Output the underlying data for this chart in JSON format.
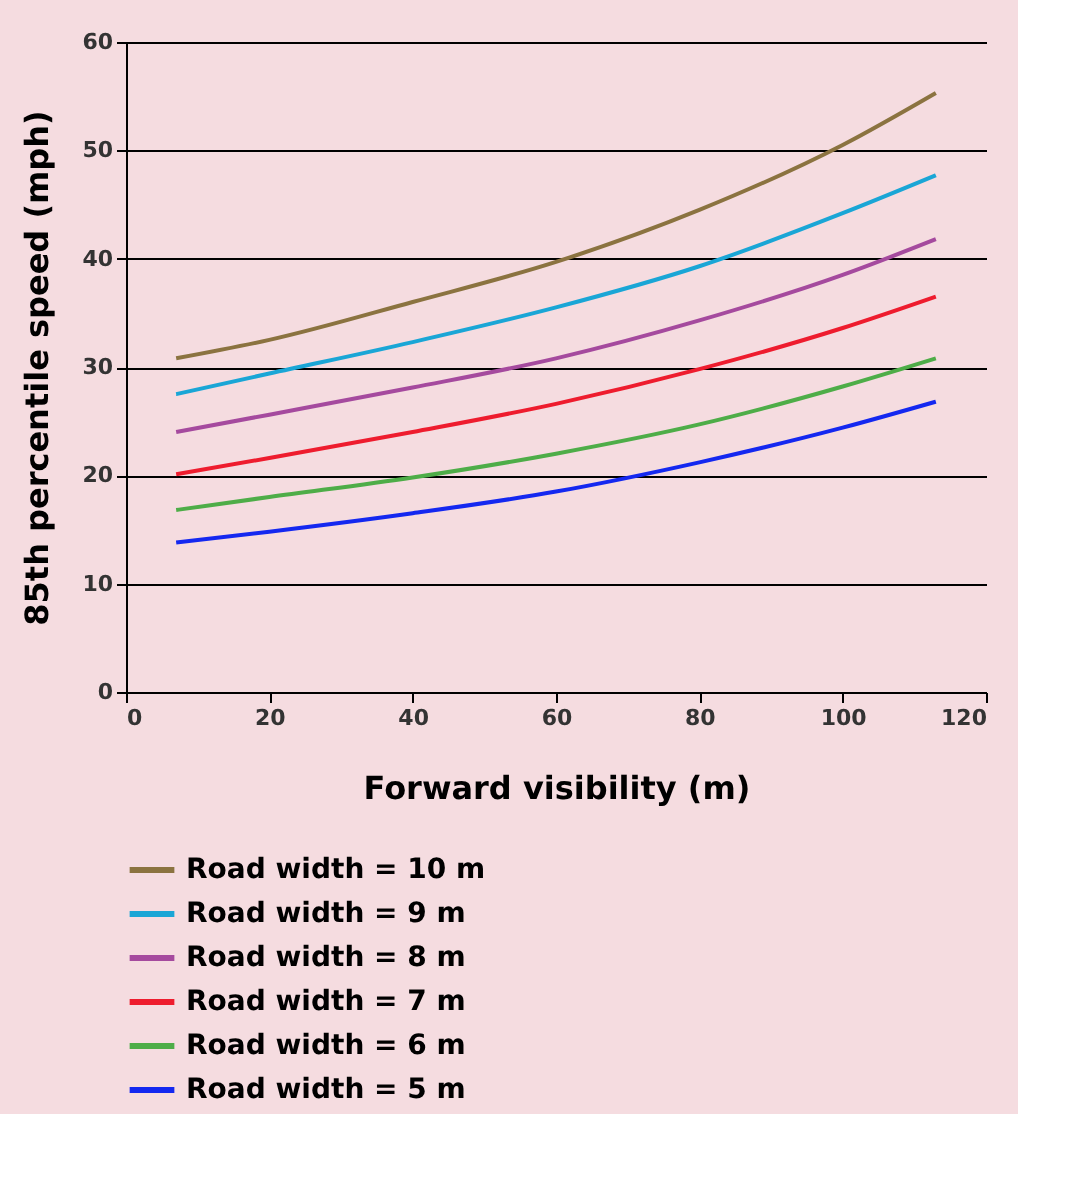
{
  "chart_data": {
    "type": "line",
    "xlabel": "Forward visibility (m)",
    "ylabel": "85th percentile speed (mph)",
    "x": [
      7,
      20,
      40,
      60,
      80,
      100,
      113
    ],
    "series": [
      {
        "name": "Road width = 10 m",
        "color": "#8b7340",
        "values": [
          30.8,
          32.5,
          36,
          39.7,
          44.5,
          50.5,
          55.3
        ]
      },
      {
        "name": "Road width = 9 m",
        "color": "#1aa6d6",
        "values": [
          27.5,
          29.4,
          32.3,
          35.5,
          39.3,
          44.2,
          47.7
        ]
      },
      {
        "name": "Road width = 8 m",
        "color": "#a54a9e",
        "values": [
          24,
          25.6,
          28.1,
          30.8,
          34.3,
          38.5,
          41.8
        ]
      },
      {
        "name": "Road width = 7 m",
        "color": "#ee1c2e",
        "values": [
          20.1,
          21.6,
          24,
          26.6,
          29.8,
          33.6,
          36.5
        ]
      },
      {
        "name": "Road width = 6 m",
        "color": "#4ead48",
        "values": [
          16.8,
          18,
          19.8,
          22,
          24.7,
          28.2,
          30.8
        ]
      },
      {
        "name": "Road width = 5 m",
        "color": "#1428f0",
        "values": [
          13.8,
          14.8,
          16.5,
          18.5,
          21.2,
          24.4,
          26.8
        ]
      }
    ],
    "xlim": [
      0,
      120
    ],
    "xticks": [
      0,
      20,
      40,
      60,
      80,
      100,
      120
    ],
    "ylim": [
      0,
      60
    ],
    "yticks": [
      0,
      10,
      20,
      30,
      40,
      50,
      60
    ],
    "grid": "y",
    "legend": "bottom",
    "marker": "none",
    "line_style": "solid"
  }
}
